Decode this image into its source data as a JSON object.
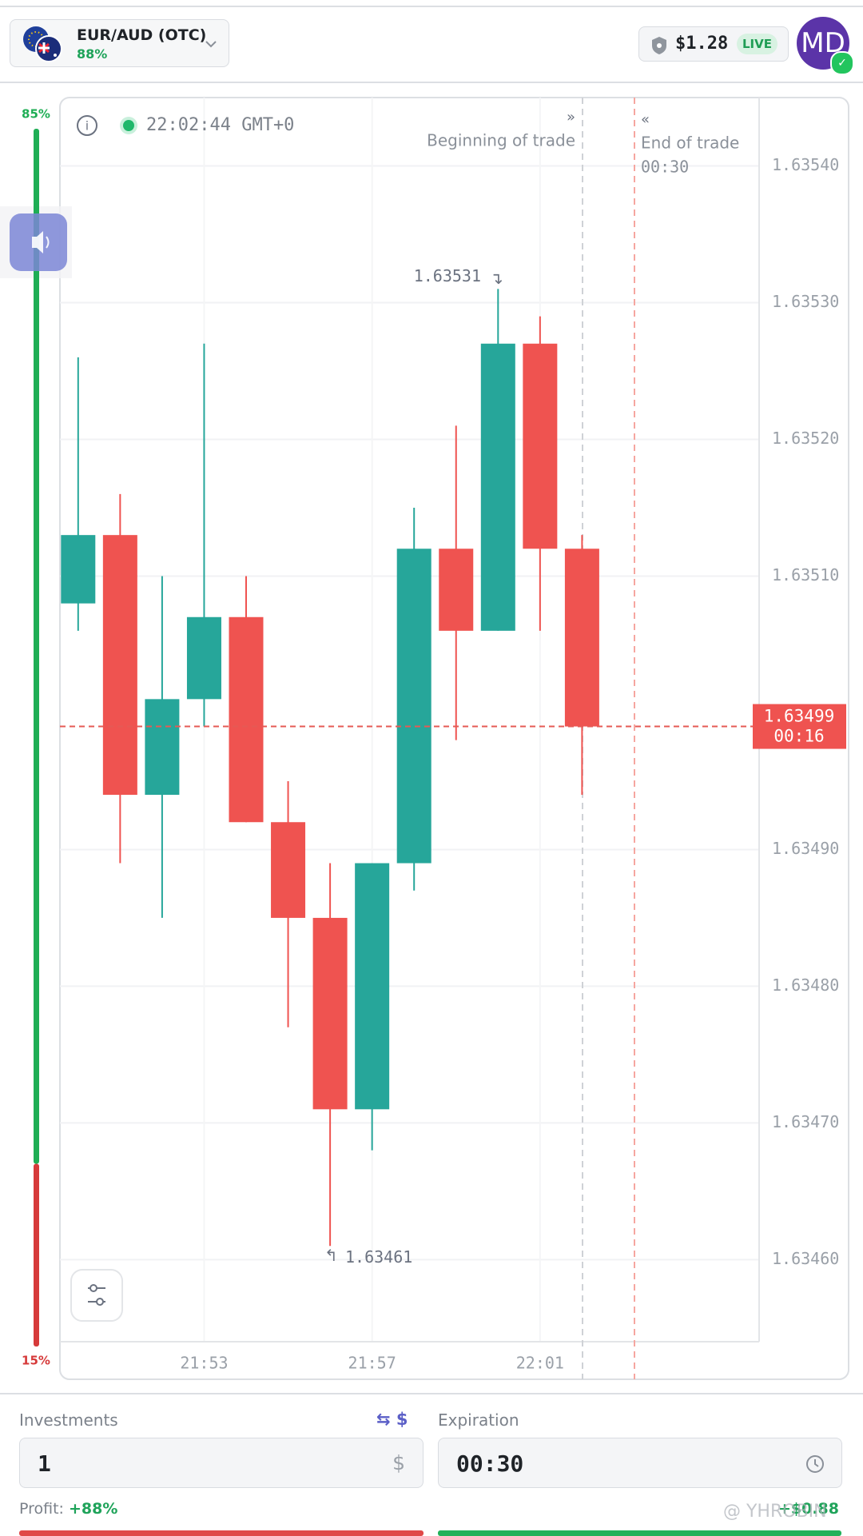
{
  "header": {
    "pair": "EUR/AUD (OTC)",
    "payout": "88%",
    "balance": "$1.28",
    "account_type": "LIVE",
    "avatar": "MD"
  },
  "sentiment": {
    "values": [
      85,
      15
    ],
    "value_labels": [
      "85%",
      "15%"
    ],
    "colors": [
      "#1fae55",
      "#d63a3a"
    ]
  },
  "chart_data": {
    "type": "candlestick",
    "clock": "22:02:44 GMT+0",
    "categories": [
      null,
      null,
      null,
      "21:53",
      null,
      null,
      null,
      "21:57",
      null,
      null,
      null,
      "22:01",
      null
    ],
    "open": [
      1.63508,
      1.63513,
      1.63494,
      1.63501,
      1.63507,
      1.63492,
      1.63485,
      1.63471,
      1.63489,
      1.63512,
      1.63506,
      1.63527,
      1.63512
    ],
    "high": [
      1.63526,
      1.63516,
      1.6351,
      1.63527,
      1.6351,
      1.63495,
      1.63489,
      1.63489,
      1.63515,
      1.63521,
      1.63531,
      1.63529,
      1.63513
    ],
    "low": [
      1.63506,
      1.63489,
      1.63485,
      1.63499,
      1.63492,
      1.63477,
      1.63461,
      1.63468,
      1.63487,
      1.63498,
      1.63506,
      1.63506,
      1.63494
    ],
    "close": [
      1.63513,
      1.63494,
      1.63501,
      1.63507,
      1.63492,
      1.63485,
      1.63471,
      1.63489,
      1.63512,
      1.63506,
      1.63527,
      1.63512,
      1.63499
    ],
    "up_color": "#26a69a",
    "down_color": "#ef5350",
    "ylim": [
      1.63454,
      1.63545
    ],
    "yticks": [
      {
        "value": 1.6346,
        "label": "1.63460"
      },
      {
        "value": 1.6347,
        "label": "1.63470"
      },
      {
        "value": 1.6348,
        "label": "1.63480"
      },
      {
        "value": 1.6349,
        "label": "1.63490"
      },
      {
        "value": 1.6351,
        "label": "1.63510"
      },
      {
        "value": 1.6352,
        "label": "1.63520"
      },
      {
        "value": 1.6353,
        "label": "1.63530"
      },
      {
        "value": 1.6354,
        "label": "1.63540"
      }
    ],
    "grid": true,
    "high_label": 1.63531,
    "low_label": 1.63461,
    "current_price": 1.63499,
    "timer": "00:16",
    "trade_start_label": "Beginning of trade",
    "trade_end_label": "End of trade",
    "trade_end_timer": "00:30"
  },
  "form": {
    "investments_label": "Investments",
    "currency_switch": "$",
    "amount": "1",
    "currency": "$",
    "expiration_label": "Expiration",
    "expiration": "00:30",
    "profit_label": "Profit:",
    "profit_percent": "+88%",
    "profit_amount": "+$0.88"
  },
  "watermark": "@ YHROBIN"
}
